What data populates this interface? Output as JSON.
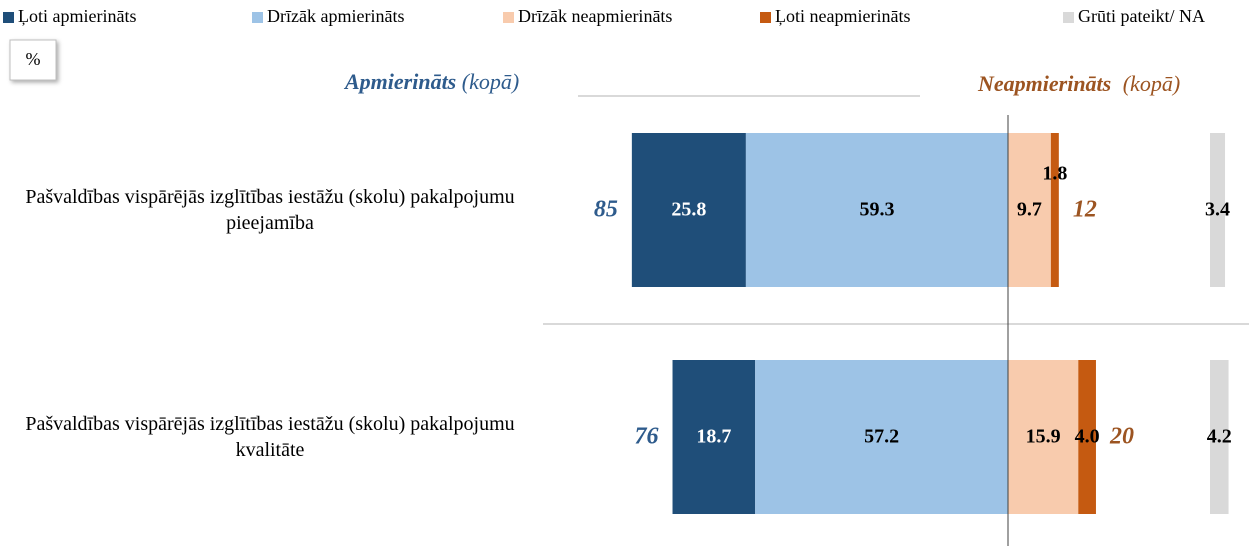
{
  "chart_data": {
    "type": "bar",
    "unit_label": "%",
    "categories": [
      "Pašvaldības vispārējās izglītības iestāžu (skolu) pakalpojumu pieejamība",
      "Pašvaldības vispārējās izglītības iestāžu (skolu) pakalpojumu kvalitāte"
    ],
    "series": [
      {
        "name": "Ļoti apmierināts",
        "color": "#1f4e79",
        "side": "positive",
        "values": [
          25.8,
          18.7
        ],
        "value_labels": [
          "25.8",
          "18.7"
        ]
      },
      {
        "name": "Drīzāk apmierināts",
        "color": "#9dc3e6",
        "side": "positive",
        "values": [
          59.3,
          57.2
        ],
        "value_labels": [
          "59.3",
          "57.2"
        ]
      },
      {
        "name": "Drīzāk neapmierināts",
        "color": "#f8cbad",
        "side": "negative",
        "values": [
          9.7,
          15.9
        ],
        "value_labels": [
          "9.7",
          "15.9"
        ]
      },
      {
        "name": "Ļoti neapmierināts",
        "color": "#c55a11",
        "side": "negative",
        "values": [
          1.8,
          4.0
        ],
        "value_labels": [
          "1.8",
          "4.0"
        ]
      },
      {
        "name": "Grūti pateikt/ NA",
        "color": "#d9d9d9",
        "side": "other",
        "values": [
          3.4,
          4.2
        ],
        "value_labels": [
          "3.4",
          "4.2"
        ]
      }
    ],
    "totals": [
      {
        "label": "Apmierināts",
        "note": "(kopā)",
        "color": "#2e5b8c",
        "values": [
          85,
          76
        ]
      },
      {
        "label": "Neapmierināts",
        "note": "(kopā)",
        "color": "#9c5421",
        "values": [
          12,
          20
        ]
      }
    ]
  }
}
